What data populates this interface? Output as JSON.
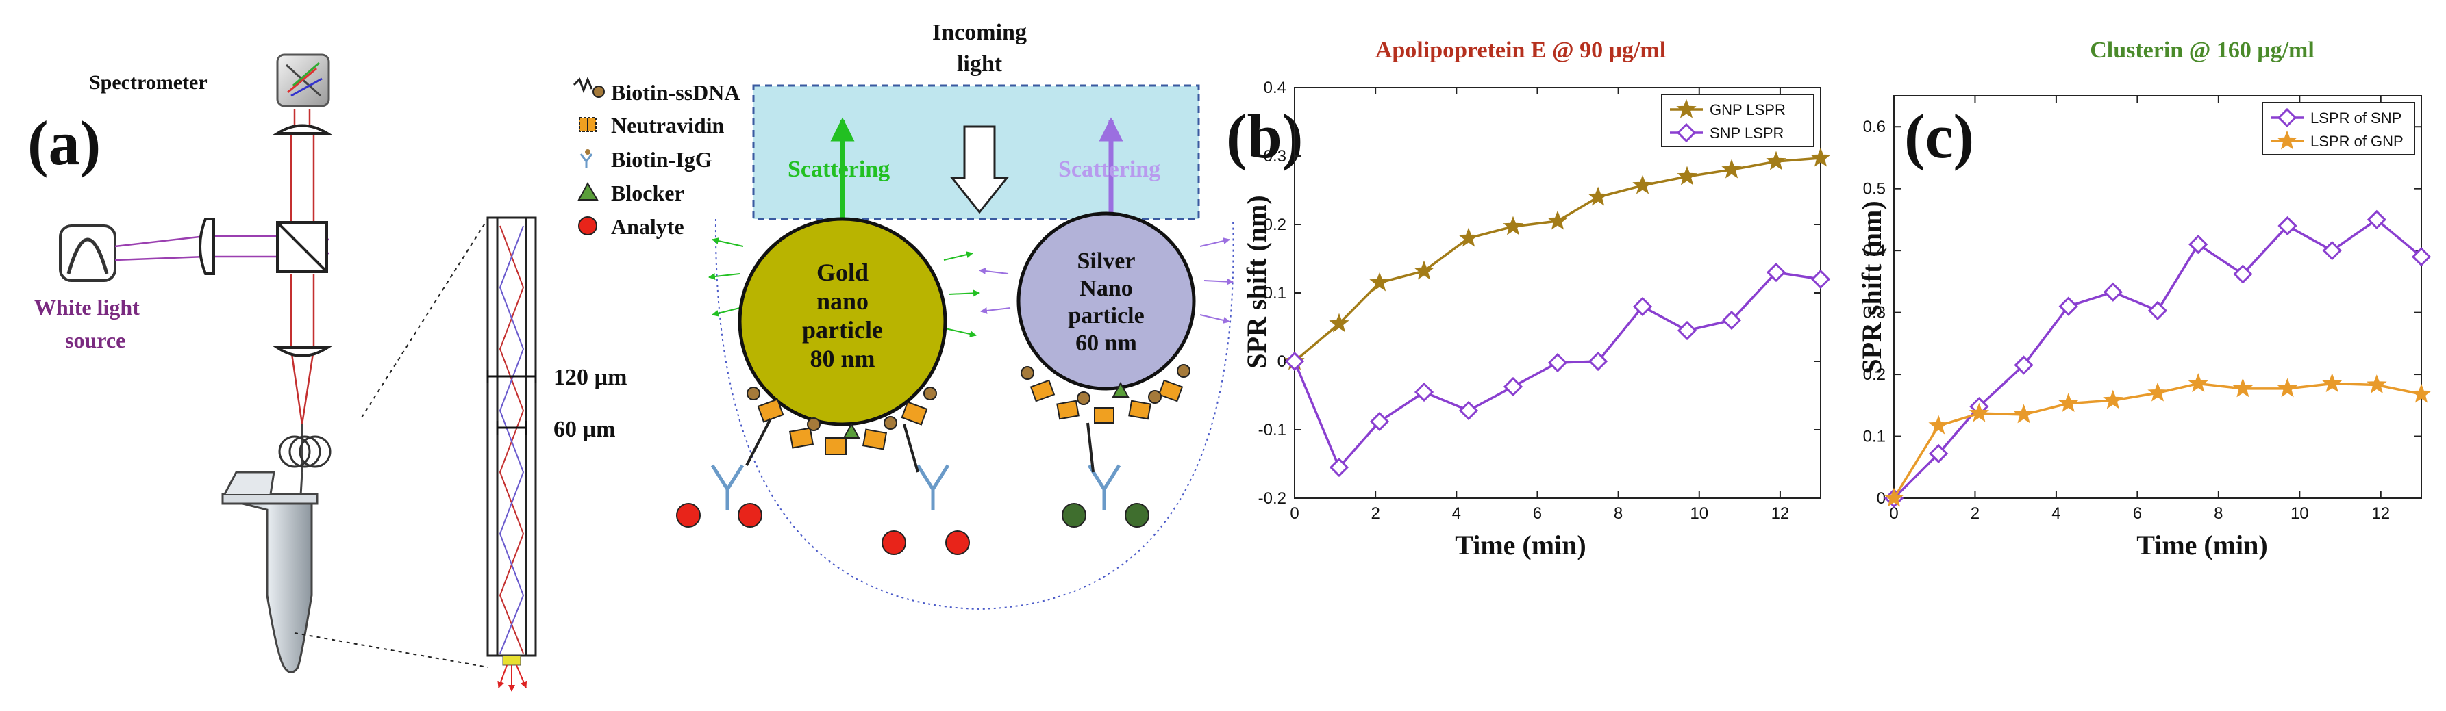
{
  "figure": {
    "panel_a": {
      "label": "(a)",
      "spectrometer_label": "Spectrometer",
      "light_source_line1": "White light",
      "light_source_line2": "source",
      "dim_outer": "120 µm",
      "dim_inner": "60 µm",
      "incoming_line1": "Incoming",
      "incoming_line2": "light",
      "scattering_left": "Scattering",
      "scattering_right": "Scattering",
      "gold_line1": "Gold",
      "gold_line2": "nano",
      "gold_line3": "particle",
      "gold_line4": "80 nm",
      "silver_line1": "Silver",
      "silver_line2": "Nano",
      "silver_line3": "particle",
      "silver_line4": "60 nm",
      "legend": [
        {
          "label": "Biotin-ssDNA",
          "icon": "biotin-ssdna-icon"
        },
        {
          "label": "Neutravidin",
          "icon": "neutravidin-icon"
        },
        {
          "label": "Biotin-IgG",
          "icon": "biotin-igg-icon"
        },
        {
          "label": "Blocker",
          "icon": "blocker-triangle-icon",
          "color": "#5a9e3a"
        },
        {
          "label": "Analyte",
          "icon": "analyte-dot-icon",
          "color": "#e8241a"
        }
      ],
      "colors": {
        "gold": "#b9b400",
        "silver": "#b2b2d8",
        "scatter_green": "#22c022",
        "scatter_purple": "#9b6fe0",
        "flow_cell": "#bfe6ee",
        "source_purple": "#7a2a80",
        "analyte_red": "#e8241a",
        "analyte_green": "#3f6e2e",
        "neutravidin": "#f0a020"
      }
    },
    "panel_b": {
      "label": "(b)"
    },
    "panel_c": {
      "label": "(c)"
    }
  },
  "chart_data": [
    {
      "type": "line",
      "title": "Apolipopretein E @ 90 μg/ml",
      "title_color": "#b5301e",
      "xlabel": "Time (min)",
      "ylabel": "SPR shift (nm)",
      "xlim": [
        0,
        13
      ],
      "ylim": [
        -0.2,
        0.4
      ],
      "xticks": [
        "0",
        "2",
        "4",
        "6",
        "8",
        "10",
        "12"
      ],
      "yticks": [
        "-0.2",
        "-0.1",
        "0",
        "0.1",
        "0.2",
        "0.3",
        "0.4"
      ],
      "legend_position": "top-right",
      "series": [
        {
          "name": "GNP LSPR",
          "marker": "star",
          "color": "#a37c18",
          "x": [
            0,
            1.1,
            2.1,
            3.2,
            4.3,
            5.4,
            6.5,
            7.5,
            8.6,
            9.7,
            10.8,
            11.9,
            13
          ],
          "y": [
            0.0,
            0.055,
            0.115,
            0.132,
            0.18,
            0.197,
            0.205,
            0.24,
            0.257,
            0.27,
            0.28,
            0.292,
            0.297
          ]
        },
        {
          "name": "SNP LSPR",
          "marker": "diamond",
          "color": "#8a3fd0",
          "x": [
            0,
            1.1,
            2.1,
            3.2,
            4.3,
            5.4,
            6.5,
            7.5,
            8.6,
            9.7,
            10.8,
            11.9,
            13
          ],
          "y": [
            0.0,
            -0.155,
            -0.088,
            -0.045,
            -0.072,
            -0.037,
            -0.002,
            0.0,
            0.08,
            0.045,
            0.06,
            0.13,
            0.12
          ]
        }
      ]
    },
    {
      "type": "line",
      "title": "Clusterin @ 160 μg/ml",
      "title_color": "#4a8a2a",
      "xlabel": "Time (min)",
      "ylabel": "SPR shift (nm)",
      "xlim": [
        0,
        13
      ],
      "ylim": [
        0,
        0.65
      ],
      "xticks": [
        "0",
        "2",
        "4",
        "6",
        "8",
        "10",
        "12"
      ],
      "yticks": [
        "0",
        "0.1",
        "0.2",
        "0.3",
        "0.4",
        "0.5",
        "0.6"
      ],
      "legend_position": "top-right",
      "series": [
        {
          "name": "LSPR of SNP",
          "marker": "diamond",
          "color": "#8a3fd0",
          "x": [
            0,
            1.1,
            2.1,
            3.2,
            4.3,
            5.4,
            6.5,
            7.5,
            8.6,
            9.7,
            10.8,
            11.9,
            13
          ],
          "y": [
            0.0,
            0.072,
            0.148,
            0.215,
            0.31,
            0.333,
            0.303,
            0.41,
            0.362,
            0.44,
            0.4,
            0.45,
            0.39
          ]
        },
        {
          "name": "LSPR of GNP",
          "marker": "star",
          "color": "#e89a2a",
          "x": [
            0,
            1.1,
            2.1,
            3.2,
            4.3,
            5.4,
            6.5,
            7.5,
            8.6,
            9.7,
            10.8,
            11.9,
            13
          ],
          "y": [
            0.0,
            0.117,
            0.137,
            0.135,
            0.153,
            0.158,
            0.17,
            0.185,
            0.177,
            0.177,
            0.185,
            0.183,
            0.168
          ]
        }
      ]
    }
  ]
}
